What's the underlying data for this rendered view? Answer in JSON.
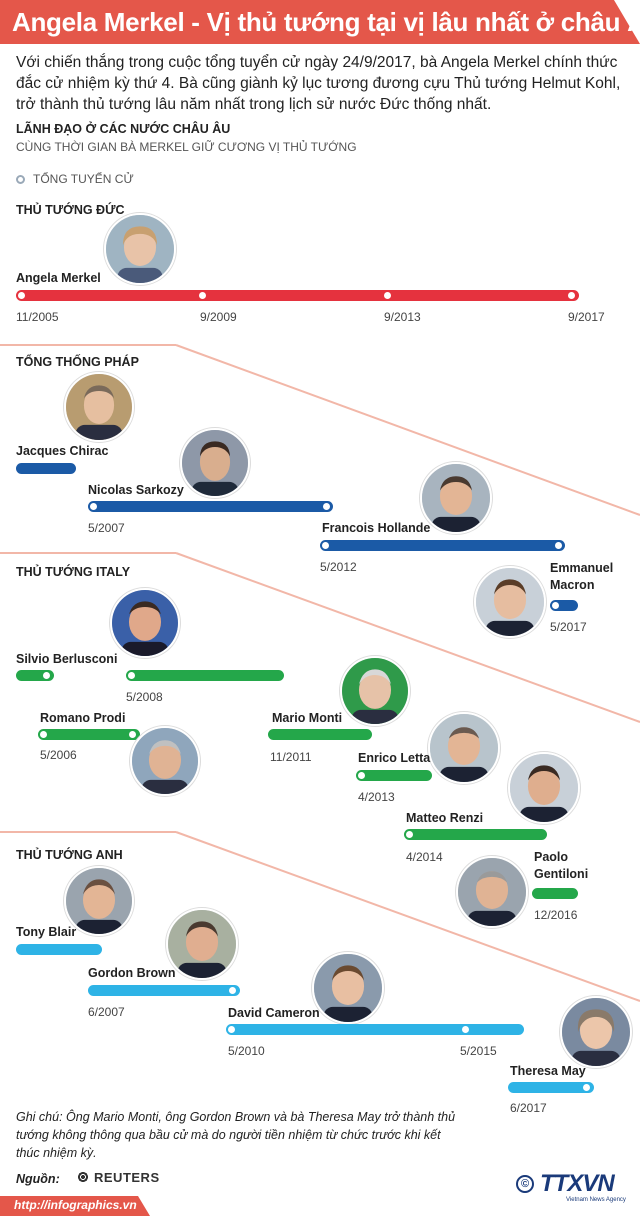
{
  "header": {
    "title": "Angela Merkel - Vị thủ tướng tại vị lâu nhất ở châu Âu"
  },
  "intro": "Với chiến thắng trong cuộc tổng tuyển cử ngày 24/9/2017, bà Angela Merkel chính thức đắc cử nhiệm kỳ thứ 4. Bà cũng giành kỷ lục tương đương cựu Thủ tướng Helmut Kohl, trở thành thủ tướng lâu năm nhất trong lịch sử nước Đức thống nhất.",
  "subheading": {
    "title": "LÃNH ĐẠO Ở CÁC NƯỚC CHÂU ÂU",
    "caption": "CÙNG THỜI GIAN BÀ MERKEL GIỮ CƯƠNG VỊ THỦ TƯỚNG"
  },
  "legend": {
    "label": "TỔNG TUYỂN CỬ"
  },
  "colors": {
    "germany": "#e5323e",
    "france": "#1b5aa6",
    "italy": "#24a74a",
    "uk": "#2eb3e6",
    "accent": "#e4574a"
  },
  "germany": {
    "heading": "THỦ TƯỚNG ĐỨC",
    "merkel": {
      "name": "Angela Merkel",
      "icon": "portrait-photo"
    },
    "dates": [
      "11/2005",
      "9/2009",
      "9/2013",
      "9/2017"
    ]
  },
  "france": {
    "heading": "TỔNG THỐNG PHÁP",
    "chirac": {
      "name": "Jacques Chirac"
    },
    "sarkozy": {
      "name": "Nicolas Sarkozy",
      "start": "5/2007"
    },
    "hollande": {
      "name": "Francois Hollande",
      "start": "5/2012"
    },
    "macron": {
      "name_line1": "Emmanuel",
      "name_line2": "Macron",
      "start": "5/2017"
    }
  },
  "italy": {
    "heading": "THỦ TƯỚNG ITALY",
    "berlusconi": {
      "name": "Silvio Berlusconi",
      "start": "5/2008"
    },
    "prodi": {
      "name": "Romano Prodi",
      "start": "5/2006"
    },
    "monti": {
      "name": "Mario Monti",
      "start": "11/2011"
    },
    "letta": {
      "name": "Enrico Letta",
      "start": "4/2013"
    },
    "renzi": {
      "name": "Matteo Renzi",
      "start": "4/2014"
    },
    "gentiloni": {
      "name_line1": "Paolo",
      "name_line2": "Gentiloni",
      "start": "12/2016"
    }
  },
  "uk": {
    "heading": "THỦ TƯỚNG ANH",
    "blair": {
      "name": "Tony Blair"
    },
    "brown": {
      "name": "Gordon Brown",
      "start": "6/2007"
    },
    "cameron": {
      "name": "David Cameron",
      "start": "5/2010",
      "election": "5/2015"
    },
    "may": {
      "name": "Theresa May",
      "start": "6/2017"
    }
  },
  "note": "Ghi chú: Ông Mario Monti, ông Gordon Brown và bà Theresa May trở thành thủ tướng không thông qua bầu cử mà do người tiền nhiệm từ chức trước khi kết thúc nhiệm kỳ.",
  "source": {
    "label": "Nguồn:",
    "name": "REUTERS"
  },
  "footer": {
    "url": "http://infographics.vn",
    "copyright": "©",
    "brand": "TTXVN",
    "brand_sub": "Vietnam News Agency"
  }
}
